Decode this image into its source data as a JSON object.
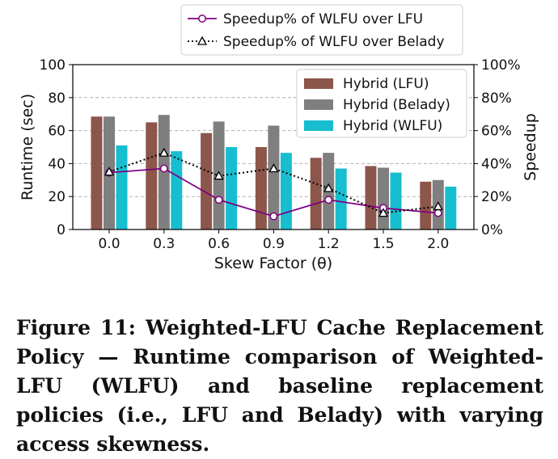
{
  "chart_data": {
    "type": "bar",
    "xlabel": "Skew Factor (θ)",
    "ylabel": "Runtime (sec)",
    "y2label": "Speedup",
    "categories": [
      "0.0",
      "0.3",
      "0.6",
      "0.9",
      "1.2",
      "1.5",
      "2.0"
    ],
    "ylim": [
      0,
      100
    ],
    "y2lim": [
      0,
      100
    ],
    "yticks": [
      "0",
      "20",
      "40",
      "60",
      "80",
      "100"
    ],
    "y2ticks": [
      "0%",
      "20%",
      "40%",
      "60%",
      "80%",
      "100%"
    ],
    "grid": true,
    "bar_series": [
      {
        "name": "Hybrid (LFU)",
        "color": "#8c564b",
        "values": [
          68.5,
          65,
          58.5,
          50,
          43.5,
          38.5,
          29
        ]
      },
      {
        "name": "Hybrid (Belady)",
        "color": "#7f7f7f",
        "values": [
          68.5,
          69.5,
          65.5,
          63,
          46.5,
          37.5,
          30
        ]
      },
      {
        "name": "Hybrid (WLFU)",
        "color": "#17becf",
        "values": [
          51,
          47.5,
          50,
          46.5,
          37,
          34.5,
          26
        ]
      }
    ],
    "line_series": [
      {
        "name": "Speedup% of WLFU over LFU",
        "color": "#800080",
        "style": "solid",
        "marker": "circle",
        "values": [
          34.5,
          37,
          18,
          8,
          18,
          13,
          10
        ]
      },
      {
        "name": "Speedup% of WLFU over Belady",
        "color": "#000000",
        "style": "dotted",
        "marker": "triangle",
        "values": [
          35,
          46.5,
          32.5,
          37,
          25,
          10,
          14
        ]
      }
    ],
    "legend_bars_position": "top-right",
    "legend_lines_position": "above plot"
  },
  "caption": "Figure 11: Weighted-LFU Cache Replacement Policy — Runtime comparison of Weighted-LFU (WLFU) and baseline replacement policies (i.e., LFU and Belady) with varying access skewness."
}
